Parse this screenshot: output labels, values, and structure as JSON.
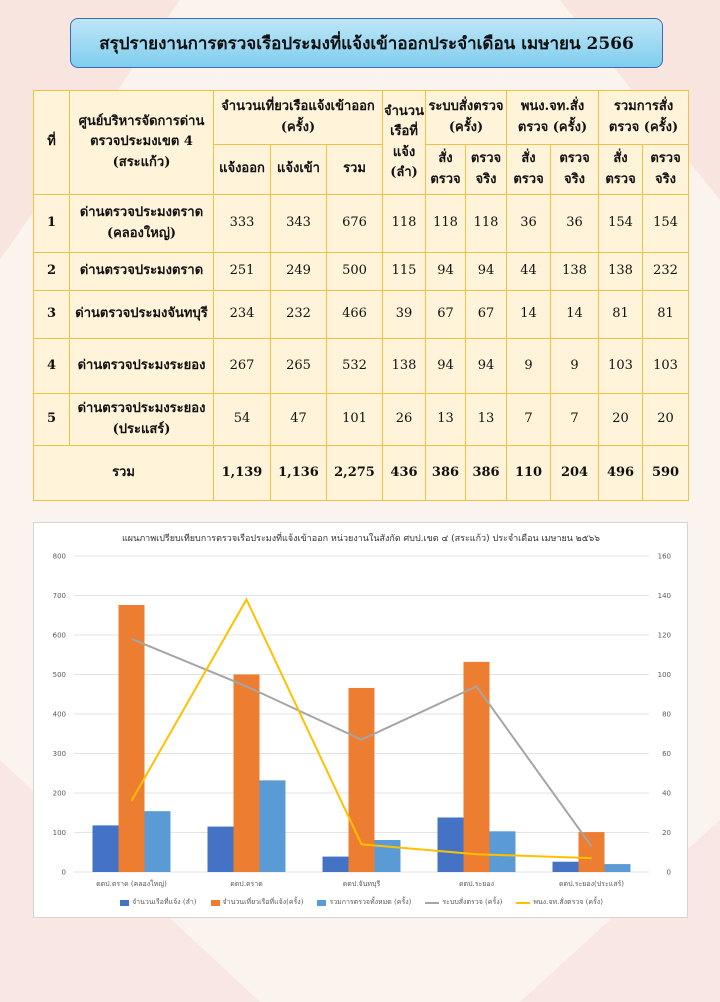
{
  "report": {
    "title": "สรุปรายงานการตรวจเรือประมงที่แจ้งเข้าออกประจำเดือน เมษายน 2566",
    "headers": {
      "no": "ที่",
      "center": "ศูนย์บริหารจัดการด่านตรวจประมงเขต 4 (สระแก้ว)",
      "notified_group": "จำนวนเที่ยวเรือแจ้งเข้าออก (ครั้ง)",
      "out": "แจ้งออก",
      "in": "แจ้งเข้า",
      "total": "รวม",
      "boats": "จำนวนเรือที่แจ้ง (ลำ)",
      "system_group": "ระบบสั่งตรวจ (ครั้ง)",
      "officer_group": "พนง.จท.สั่งตรวจ (ครั้ง)",
      "sum_group": "รวมการสั่งตรวจ (ครั้ง)",
      "ordered": "สั่งตรวจ",
      "actual": "ตรวจจริง"
    },
    "rows": [
      {
        "no": "1",
        "name": "ด่านตรวจประมงตราด (คลองใหญ่)",
        "out": "333",
        "in": "343",
        "total": "676",
        "boats": "118",
        "sys_order": "118",
        "sys_actual": "118",
        "off_order": "36",
        "off_actual": "36",
        "sum_order": "154",
        "sum_actual": "154"
      },
      {
        "no": "2",
        "name": "ด่านตรวจประมงตราด",
        "out": "251",
        "in": "249",
        "total": "500",
        "boats": "115",
        "sys_order": "94",
        "sys_actual": "94",
        "off_order": "44",
        "off_actual": "138",
        "sum_order": "138",
        "sum_actual": "232"
      },
      {
        "no": "3",
        "name": "ด่านตรวจประมงจันทบุรี",
        "out": "234",
        "in": "232",
        "total": "466",
        "boats": "39",
        "sys_order": "67",
        "sys_actual": "67",
        "off_order": "14",
        "off_actual": "14",
        "sum_order": "81",
        "sum_actual": "81"
      },
      {
        "no": "4",
        "name": "ด่านตรวจประมงระยอง",
        "out": "267",
        "in": "265",
        "total": "532",
        "boats": "138",
        "sys_order": "94",
        "sys_actual": "94",
        "off_order": "9",
        "off_actual": "9",
        "sum_order": "103",
        "sum_actual": "103"
      },
      {
        "no": "5",
        "name": "ด่านตรวจประมงระยอง (ประแสร์)",
        "out": "54",
        "in": "47",
        "total": "101",
        "boats": "26",
        "sys_order": "13",
        "sys_actual": "13",
        "off_order": "7",
        "off_actual": "7",
        "sum_order": "20",
        "sum_actual": "20"
      }
    ],
    "total_row": {
      "label": "รวม",
      "out": "1,139",
      "in": "1,136",
      "total": "2,275",
      "boats": "436",
      "sys_order": "386",
      "sys_actual": "386",
      "off_order": "110",
      "off_actual": "204",
      "sum_order": "496",
      "sum_actual": "590"
    }
  },
  "chart_data": {
    "type": "bar",
    "title": "แผนภาพเปรียบเทียบการตรวจเรือประมงที่แจ้งเข้าออก หน่วยงานในสังกัด ศบป.เขต ๔ (สระแก้ว) ประจำเดือน เมษายน ๒๕๖๖",
    "categories": [
      "ดตป.ตราด (คลองใหญ่)",
      "ดตป.ตราด",
      "ดตป.จันทบุรี",
      "ดตป.ระยอง",
      "ดตป.ระยอง(ประแสร์)"
    ],
    "ylim_left": [
      0,
      800
    ],
    "yticks_left": [
      0,
      100,
      200,
      300,
      400,
      500,
      600,
      700,
      800
    ],
    "ylim_right": [
      0,
      160
    ],
    "yticks_right": [
      0,
      20,
      40,
      60,
      80,
      100,
      120,
      140,
      160
    ],
    "grid": true,
    "legend_position": "bottom",
    "series": [
      {
        "name": "จำนวนเรือที่แจ้ง (ลำ)",
        "kind": "bar",
        "axis": "left",
        "color": "#4472c4",
        "values": [
          118,
          115,
          39,
          138,
          26
        ]
      },
      {
        "name": "จำนวนเที่ยวเรือที่แจ้ง(ครั้ง)",
        "kind": "bar",
        "axis": "left",
        "color": "#ed7d31",
        "values": [
          676,
          500,
          466,
          532,
          101
        ]
      },
      {
        "name": "รวมการตรวจทั้งหมด (ครั้ง)",
        "kind": "bar",
        "axis": "left",
        "color": "#5b9bd5",
        "values": [
          154,
          232,
          81,
          103,
          20
        ]
      },
      {
        "name": "ระบบสั่งตรวจ (ครั้ง)",
        "kind": "line",
        "axis": "right",
        "color": "#a5a5a5",
        "values": [
          118,
          94,
          67,
          94,
          13
        ]
      },
      {
        "name": "พนง.จท.สั่งตรวจ (ครั้ง)",
        "kind": "line",
        "axis": "right",
        "color": "#ffc000",
        "values": [
          36,
          138,
          14,
          9,
          7
        ]
      }
    ]
  }
}
